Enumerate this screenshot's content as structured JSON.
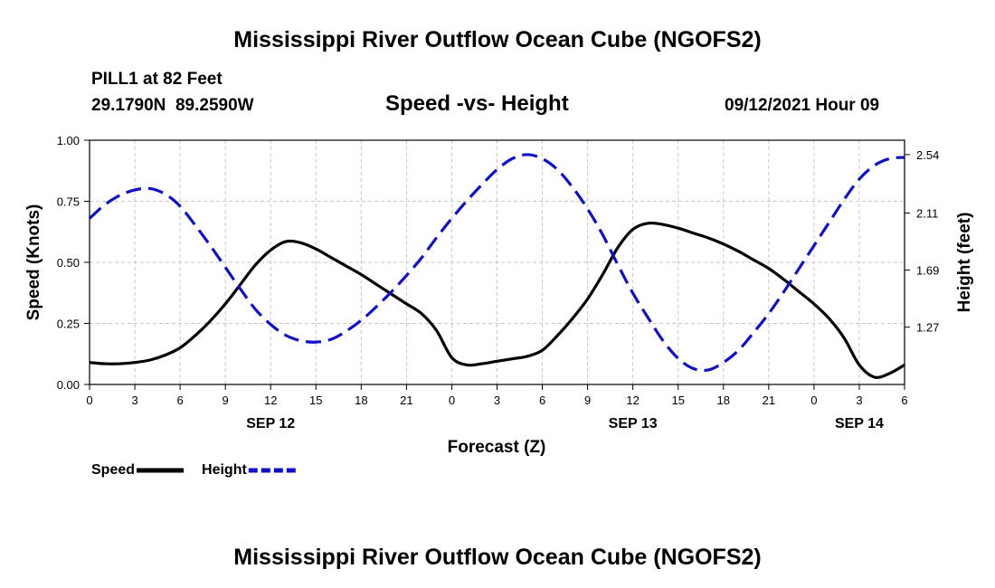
{
  "chart_data": {
    "type": "line",
    "title": "Mississippi River Outflow Ocean Cube (NGOFS2)",
    "footer_title": "Mississippi River Outflow Ocean Cube (NGOFS2)",
    "station": "PILL1 at 82 Feet",
    "coords": "29.1790N  89.2590W",
    "subtitle": "Speed -vs- Height",
    "datetime": "09/12/2021 Hour 09",
    "xlabel": "Forecast (Z)",
    "ylabel_left": "Speed (Knots)",
    "ylabel_right": "Height (feet)",
    "x_hours_range": [
      0,
      54
    ],
    "x_tick_hours": [
      0,
      3,
      6,
      9,
      12,
      15,
      18,
      21,
      24,
      27,
      30,
      33,
      36,
      39,
      42,
      45,
      48,
      51,
      54
    ],
    "x_tick_labels": [
      "0",
      "3",
      "6",
      "9",
      "12",
      "15",
      "18",
      "21",
      "0",
      "3",
      "6",
      "9",
      "12",
      "15",
      "18",
      "21",
      "0",
      "3",
      "6"
    ],
    "day_labels": [
      {
        "hour": 12,
        "label": "SEP 12"
      },
      {
        "hour": 36,
        "label": "SEP 13"
      },
      {
        "hour": 51,
        "label": "SEP 14"
      }
    ],
    "ylim_left": [
      0,
      1
    ],
    "y_left_ticks": [
      0,
      0.25,
      0.5,
      0.75,
      1.0
    ],
    "y_left_labels": [
      "0.00",
      "0.25",
      "0.50",
      "0.75",
      "1.00"
    ],
    "ylim_right": [
      0.848,
      2.646
    ],
    "y_right_ticks": [
      1.27,
      1.69,
      2.11,
      2.54
    ],
    "y_right_labels": [
      "1.27",
      "1.69",
      "2.11",
      "2.54"
    ],
    "grid": true,
    "series": [
      {
        "name": "Speed",
        "color": "#000000",
        "dash": "solid",
        "axis": "left",
        "x": [
          0,
          1,
          2,
          3,
          4,
          5,
          6,
          7,
          8,
          9,
          10,
          11,
          12,
          13,
          14,
          15,
          16,
          17,
          18,
          19,
          20,
          21,
          22,
          23,
          24,
          25,
          26,
          27,
          28,
          29,
          30,
          31,
          32,
          33,
          34,
          35,
          36,
          37,
          38,
          39,
          40,
          41,
          42,
          43,
          44,
          45,
          46,
          47,
          48,
          49,
          50,
          51,
          52,
          53,
          54
        ],
        "values": [
          0.09,
          0.085,
          0.085,
          0.09,
          0.1,
          0.12,
          0.15,
          0.2,
          0.26,
          0.33,
          0.41,
          0.49,
          0.55,
          0.585,
          0.58,
          0.555,
          0.52,
          0.485,
          0.45,
          0.41,
          0.37,
          0.33,
          0.29,
          0.22,
          0.11,
          0.08,
          0.085,
          0.095,
          0.105,
          0.115,
          0.14,
          0.2,
          0.27,
          0.35,
          0.45,
          0.56,
          0.635,
          0.66,
          0.655,
          0.64,
          0.62,
          0.6,
          0.575,
          0.545,
          0.51,
          0.475,
          0.43,
          0.38,
          0.33,
          0.27,
          0.19,
          0.08,
          0.03,
          0.045,
          0.08
        ]
      },
      {
        "name": "Height",
        "color": "#1010cc",
        "dash": "dashed",
        "axis": "right",
        "x": [
          0,
          1,
          2,
          3,
          4,
          5,
          6,
          7,
          8,
          9,
          10,
          11,
          12,
          13,
          14,
          15,
          16,
          17,
          18,
          19,
          20,
          21,
          22,
          23,
          24,
          25,
          26,
          27,
          28,
          29,
          30,
          31,
          32,
          33,
          34,
          35,
          36,
          37,
          38,
          39,
          40,
          41,
          42,
          43,
          44,
          45,
          46,
          47,
          48,
          49,
          50,
          51,
          52,
          53,
          54
        ],
        "values": [
          2.07,
          2.17,
          2.24,
          2.28,
          2.29,
          2.25,
          2.16,
          2.02,
          1.87,
          1.71,
          1.55,
          1.4,
          1.29,
          1.21,
          1.17,
          1.16,
          1.18,
          1.24,
          1.32,
          1.42,
          1.53,
          1.65,
          1.78,
          1.93,
          2.07,
          2.2,
          2.32,
          2.43,
          2.51,
          2.54,
          2.51,
          2.43,
          2.3,
          2.14,
          1.95,
          1.73,
          1.52,
          1.34,
          1.17,
          1.04,
          0.965,
          0.955,
          1.01,
          1.1,
          1.23,
          1.37,
          1.53,
          1.7,
          1.87,
          2.04,
          2.21,
          2.36,
          2.46,
          2.51,
          2.52
        ]
      }
    ],
    "legend": [
      {
        "label": "Speed",
        "color": "#000000",
        "dash": "solid"
      },
      {
        "label": "Height",
        "color": "#1010cc",
        "dash": "dashed"
      }
    ]
  }
}
